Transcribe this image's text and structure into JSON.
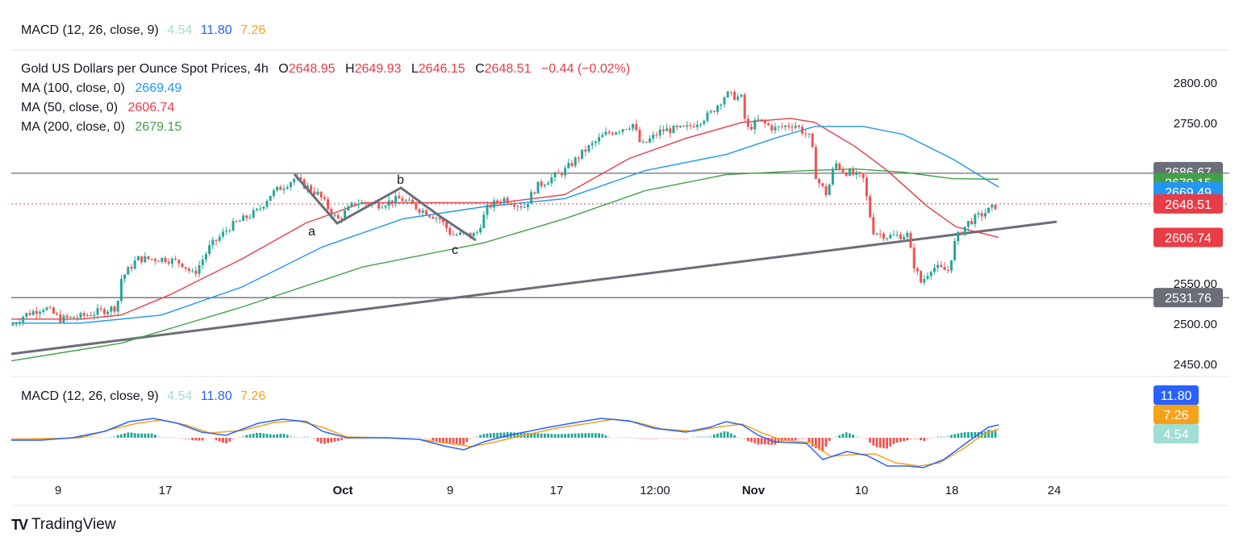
{
  "top_legend": {
    "name": "MACD (12, 26, close, 9)",
    "v1": "4.54",
    "v2": "11.80",
    "v3": "7.26"
  },
  "price_legend": {
    "title": "Gold US Dollars per Ounce Spot Prices, 4h",
    "o_label": "O",
    "o": "2648.95",
    "h_label": "H",
    "h": "2649.93",
    "l_label": "L",
    "l": "2646.15",
    "c_label": "C",
    "c": "2648.51",
    "change": "−0.44 (−0.02%)"
  },
  "ma_legends": [
    {
      "label": "MA (100, close, 0)",
      "value": "2669.49",
      "color": "#2196f3"
    },
    {
      "label": "MA (50, close, 0)",
      "value": "2606.74",
      "color": "#e83c46"
    },
    {
      "label": "MA (200, close, 0)",
      "value": "2679.15",
      "color": "#43a047"
    }
  ],
  "macd_legend": {
    "name": "MACD (12, 26, close, 9)",
    "v1": "4.54",
    "v2": "11.80",
    "v3": "7.26"
  },
  "price_axis": {
    "ticks": [
      "2800.00",
      "2750.00",
      "2550.00",
      "2500.00",
      "2450.00"
    ]
  },
  "price_tags": [
    {
      "value": "2686.67",
      "color": "#6b6e78"
    },
    {
      "value": "2679.15",
      "color": "#43a047"
    },
    {
      "value": "2669.49",
      "color": "#2196f3"
    },
    {
      "value": "2648.51",
      "color": "#e83c46"
    },
    {
      "value": "2606.74",
      "color": "#e83c46"
    },
    {
      "value": "2531.76",
      "color": "#6b6e78"
    }
  ],
  "macd_tags": [
    {
      "value": "11.80",
      "color": "#2962ff"
    },
    {
      "value": "7.26",
      "color": "#f7a21b"
    },
    {
      "value": "4.54",
      "color": "#9fded4"
    }
  ],
  "time_axis": {
    "labels": [
      "9",
      "17",
      "Oct",
      "9",
      "17",
      "12:00",
      "Nov",
      "10",
      "18",
      "24"
    ]
  },
  "annotations": {
    "a": "a",
    "b": "b",
    "c": "c"
  },
  "brand": {
    "name": "TradingView",
    "logo": "TV"
  },
  "chart_data": {
    "type": "candlestick",
    "timeframe": "4h",
    "ylim": [
      2430,
      2830
    ],
    "grid": false,
    "horizontal_lines": [
      2686.67,
      2531.76
    ],
    "current_price_line": 2648.51,
    "series_close_approx": [
      {
        "date": "Sep 6",
        "price": 2497
      },
      {
        "date": "Sep 9",
        "price": 2506
      },
      {
        "date": "Sep 10",
        "price": 2512
      },
      {
        "date": "Sep 12",
        "price": 2557
      },
      {
        "date": "Sep 13",
        "price": 2578
      },
      {
        "date": "Sep 17",
        "price": 2571
      },
      {
        "date": "Sep 18",
        "price": 2568
      },
      {
        "date": "Sep 20",
        "price": 2621
      },
      {
        "date": "Sep 23",
        "price": 2630
      },
      {
        "date": "Sep 26",
        "price": 2672
      },
      {
        "date": "Sep 27",
        "price": 2658
      },
      {
        "date": "Sep 30",
        "price": 2630
      },
      {
        "date": "Oct 2",
        "price": 2658
      },
      {
        "date": "Oct 4",
        "price": 2652
      },
      {
        "date": "Oct 7",
        "price": 2645
      },
      {
        "date": "Oct 9",
        "price": 2612
      },
      {
        "date": "Oct 10",
        "price": 2625
      },
      {
        "date": "Oct 11",
        "price": 2655
      },
      {
        "date": "Oct 16",
        "price": 2673
      },
      {
        "date": "Oct 18",
        "price": 2720
      },
      {
        "date": "Oct 21",
        "price": 2735
      },
      {
        "date": "Oct 23",
        "price": 2735
      },
      {
        "date": "Oct 25",
        "price": 2745
      },
      {
        "date": "Oct 29",
        "price": 2780
      },
      {
        "date": "Oct 30",
        "price": 2785
      },
      {
        "date": "Oct 31",
        "price": 2745
      },
      {
        "date": "Nov 4",
        "price": 2740
      },
      {
        "date": "Nov 6",
        "price": 2660
      },
      {
        "date": "Nov 7",
        "price": 2700
      },
      {
        "date": "Nov 8",
        "price": 2685
      },
      {
        "date": "Nov 11",
        "price": 2618
      },
      {
        "date": "Nov 12",
        "price": 2600
      },
      {
        "date": "Nov 14",
        "price": 2555
      },
      {
        "date": "Nov 15",
        "price": 2565
      },
      {
        "date": "Nov 18",
        "price": 2612
      },
      {
        "date": "Nov 20",
        "price": 2645
      },
      {
        "date": "Nov 21",
        "price": 2648.51
      }
    ],
    "moving_averages": [
      {
        "name": "MA (100, close, 0)",
        "last": 2669.49
      },
      {
        "name": "MA (50, close, 0)",
        "last": 2606.74
      },
      {
        "name": "MA (200, close, 0)",
        "last": 2679.15
      }
    ],
    "macd": {
      "macd": 11.8,
      "signal": 7.26,
      "histogram": 4.54
    }
  }
}
